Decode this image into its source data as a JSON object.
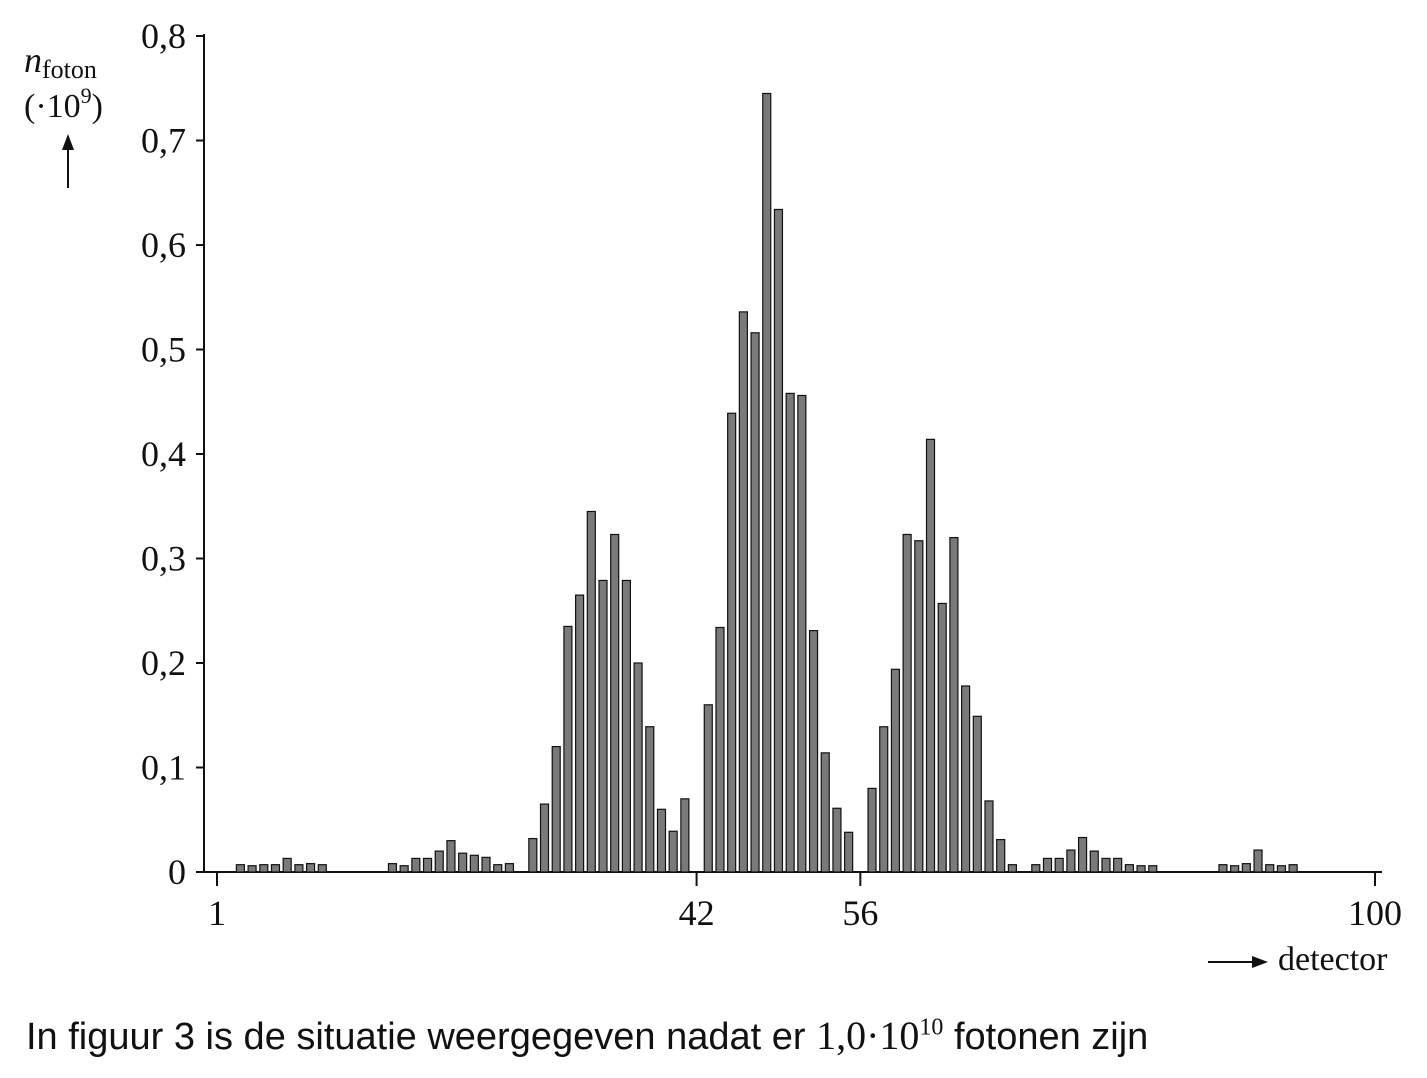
{
  "chart_data": {
    "type": "bar",
    "ylabel_main": "n",
    "ylabel_sub": "foton",
    "ylabel_scale_prefix": "(·10",
    "ylabel_scale_exp": "9",
    "ylabel_scale_suffix": ")",
    "xlabel": "detector",
    "ylim": [
      0,
      0.8
    ],
    "xlim": [
      1,
      100
    ],
    "y_ticks": [
      {
        "value": 0,
        "label": "0"
      },
      {
        "value": 0.1,
        "label": "0,1"
      },
      {
        "value": 0.2,
        "label": "0,2"
      },
      {
        "value": 0.3,
        "label": "0,3"
      },
      {
        "value": 0.4,
        "label": "0,4"
      },
      {
        "value": 0.5,
        "label": "0,5"
      },
      {
        "value": 0.6,
        "label": "0,6"
      },
      {
        "value": 0.7,
        "label": "0,7"
      },
      {
        "value": 0.8,
        "label": "0,8"
      }
    ],
    "x_ticks": [
      {
        "value": 1,
        "label": "1"
      },
      {
        "value": 42,
        "label": "42"
      },
      {
        "value": 56,
        "label": "56"
      },
      {
        "value": 100,
        "label": "100"
      }
    ],
    "bar_color": "#7a7a7a",
    "x": [
      3,
      4,
      5,
      6,
      7,
      8,
      9,
      10,
      16,
      17,
      18,
      19,
      20,
      21,
      22,
      23,
      24,
      25,
      26,
      28,
      29,
      30,
      31,
      32,
      33,
      34,
      35,
      36,
      37,
      38,
      39,
      40,
      41,
      43,
      44,
      45,
      46,
      47,
      48,
      49,
      50,
      51,
      52,
      53,
      54,
      55,
      57,
      58,
      59,
      60,
      61,
      62,
      63,
      64,
      65,
      66,
      67,
      68,
      69,
      71,
      72,
      73,
      74,
      75,
      76,
      77,
      78,
      79,
      80,
      81,
      87,
      88,
      89,
      90,
      91,
      92,
      93
    ],
    "values": [
      0.007,
      0.006,
      0.007,
      0.007,
      0.013,
      0.007,
      0.008,
      0.007,
      0.008,
      0.006,
      0.013,
      0.013,
      0.02,
      0.03,
      0.018,
      0.016,
      0.014,
      0.007,
      0.008,
      0.032,
      0.065,
      0.12,
      0.235,
      0.265,
      0.345,
      0.279,
      0.323,
      0.279,
      0.2,
      0.139,
      0.06,
      0.039,
      0.07,
      0.16,
      0.234,
      0.439,
      0.536,
      0.516,
      0.745,
      0.634,
      0.458,
      0.456,
      0.231,
      0.114,
      0.061,
      0.038,
      0.08,
      0.139,
      0.194,
      0.323,
      0.317,
      0.414,
      0.257,
      0.32,
      0.178,
      0.149,
      0.068,
      0.031,
      0.007,
      0.007,
      0.013,
      0.013,
      0.021,
      0.033,
      0.02,
      0.013,
      0.013,
      0.007,
      0.006,
      0.006,
      0.007,
      0.006,
      0.008,
      0.021,
      0.007,
      0.006,
      0.007
    ]
  },
  "caption": {
    "text_before": "In figuur 3 is de situatie weergegeven nadat er ",
    "math_base": "1,0·10",
    "math_exp": "10",
    "text_after": " fotonen zijn"
  }
}
